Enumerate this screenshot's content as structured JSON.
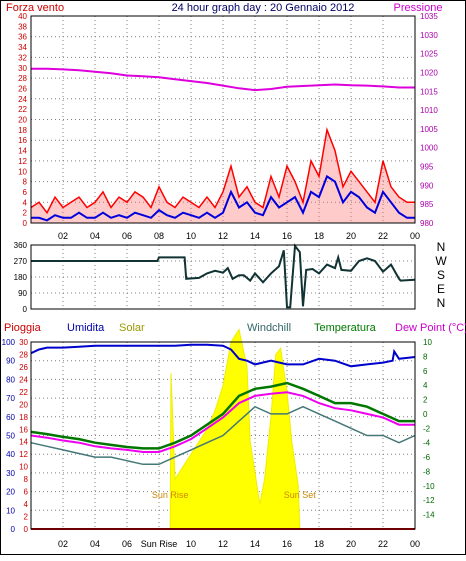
{
  "title": "24 hour graph day : 20 Gennaio 2012",
  "colors": {
    "wind": "#ff0000",
    "wind_avg": "#0000dd",
    "pressure": "#dd00dd",
    "direction": "#113333",
    "rain": "#dd0000",
    "humidity": "#0000cc",
    "solar": "#ffff00",
    "windchill": "#447777",
    "temperature": "#007700",
    "dewpoint": "#ee00ee",
    "grid": "#808080",
    "label_red": "#cc0000"
  },
  "x_axis": {
    "ticks": [
      "02",
      "04",
      "06",
      "08",
      "10",
      "12",
      "14",
      "16",
      "18",
      "20",
      "22",
      "00"
    ],
    "tick_hours": [
      2,
      4,
      6,
      8,
      10,
      12,
      14,
      16,
      18,
      20,
      22,
      24
    ],
    "bottom_ticks": [
      "02",
      "04",
      "06",
      "Sun Rise",
      "10",
      "12",
      "14",
      "16",
      "18",
      "20",
      "22",
      "00"
    ]
  },
  "chart_data": [
    {
      "type": "line",
      "name": "wind-pressure",
      "series": [
        {
          "name": "Forza vento",
          "axis": "left",
          "x": [
            0,
            0.5,
            1,
            1.5,
            2,
            2.5,
            3,
            3.5,
            4,
            4.5,
            5,
            5.5,
            6,
            6.5,
            7,
            7.5,
            8,
            8.5,
            9,
            9.5,
            10,
            10.5,
            11,
            11.5,
            12,
            12.5,
            13,
            13.5,
            14,
            14.5,
            15,
            15.5,
            16,
            16.5,
            17,
            17.5,
            18,
            18.5,
            19,
            19.5,
            20,
            20.5,
            21,
            21.5,
            22,
            22.5,
            23,
            23.5,
            24
          ],
          "values": [
            3,
            4,
            2,
            5,
            3,
            4,
            5,
            3,
            4,
            6,
            3,
            5,
            4,
            6,
            5,
            3,
            7,
            4,
            3,
            5,
            4,
            3,
            5,
            3,
            6,
            11,
            5,
            7,
            4,
            3,
            9,
            5,
            11,
            8,
            4,
            12,
            9,
            18,
            14,
            7,
            10,
            8,
            6,
            4,
            12,
            7,
            5,
            4,
            4
          ]
        },
        {
          "name": "Vento medio",
          "axis": "left",
          "x": [
            0,
            0.5,
            1,
            1.5,
            2,
            2.5,
            3,
            3.5,
            4,
            4.5,
            5,
            5.5,
            6,
            6.5,
            7,
            7.5,
            8,
            8.5,
            9,
            9.5,
            10,
            10.5,
            11,
            11.5,
            12,
            12.5,
            13,
            13.5,
            14,
            14.5,
            15,
            15.5,
            16,
            16.5,
            17,
            17.5,
            18,
            18.5,
            19,
            19.5,
            20,
            20.5,
            21,
            21.5,
            22,
            22.5,
            23,
            23.5,
            24
          ],
          "values": [
            1,
            1,
            0.5,
            1.5,
            1,
            1,
            2,
            1,
            1,
            2,
            1,
            1.5,
            1,
            2,
            1.5,
            1,
            2.5,
            1.5,
            1,
            2,
            1.5,
            1,
            2,
            1,
            2,
            6,
            3,
            4,
            2,
            1.5,
            5,
            3,
            4,
            5,
            2,
            6,
            5,
            9,
            8,
            4,
            6,
            5,
            3,
            2,
            6,
            4,
            2,
            1,
            1
          ]
        },
        {
          "name": "Pressione",
          "axis": "right",
          "x": [
            0,
            1,
            2,
            3,
            4,
            5,
            6,
            7,
            8,
            9,
            10,
            11,
            12,
            13,
            14,
            15,
            16,
            17,
            18,
            19,
            20,
            21,
            22,
            23,
            24
          ],
          "values": [
            1021,
            1021,
            1020.8,
            1020.6,
            1020.2,
            1019.8,
            1019.2,
            1019,
            1018.7,
            1018.2,
            1017.7,
            1017.2,
            1016.5,
            1015.8,
            1015.3,
            1015.6,
            1016.2,
            1016.4,
            1016.6,
            1016.8,
            1016.6,
            1016.5,
            1016.3,
            1016,
            1016
          ]
        }
      ],
      "ylim_left": [
        0,
        40
      ],
      "ylim_right": [
        980,
        1035
      ],
      "yticks_left": [
        0,
        2,
        4,
        6,
        8,
        10,
        12,
        14,
        16,
        18,
        20,
        22,
        24,
        26,
        28,
        30,
        32,
        34,
        36,
        38,
        40
      ],
      "yticks_right": [
        980,
        985,
        990,
        995,
        1000,
        1005,
        1010,
        1015,
        1020,
        1025,
        1030,
        1035
      ],
      "labels": {
        "left": "Forza vento",
        "right": "Pressione"
      }
    },
    {
      "type": "line",
      "name": "wind-direction",
      "series": [
        {
          "name": "Direzione vento",
          "x": [
            0,
            7.9,
            8,
            9.6,
            9.7,
            10.5,
            11,
            11.5,
            12,
            12.3,
            12.6,
            13,
            13.3,
            13.7,
            14,
            14.5,
            15,
            15.5,
            15.8,
            16,
            16.2,
            16.5,
            16.8,
            17,
            17.2,
            17.6,
            18,
            18.5,
            19,
            19.2,
            19.4,
            20,
            20.5,
            21,
            21.5,
            22,
            22.5,
            23,
            23.1,
            24
          ],
          "values": [
            270,
            270,
            290,
            290,
            170,
            175,
            200,
            215,
            205,
            230,
            170,
            190,
            190,
            160,
            200,
            150,
            200,
            240,
            330,
            10,
            10,
            355,
            320,
            15,
            220,
            225,
            200,
            250,
            230,
            290,
            220,
            215,
            270,
            285,
            270,
            210,
            250,
            170,
            160,
            165
          ]
        }
      ],
      "ylim": [
        0,
        360
      ],
      "yticks": [
        0,
        45,
        90,
        135,
        180,
        225,
        270,
        315,
        360
      ],
      "ytick_labels": [
        "0",
        "",
        "90",
        "",
        "180",
        "",
        "270",
        "",
        "360"
      ],
      "compass_labels": [
        "N",
        "W",
        "S",
        "E",
        "N"
      ]
    },
    {
      "type": "line",
      "name": "temperature-humidity",
      "series": [
        {
          "name": "Pioggia",
          "axis": "rain",
          "x": [
            0,
            24
          ],
          "values": [
            0,
            0
          ]
        },
        {
          "name": "Umidita",
          "axis": "left",
          "x": [
            0,
            0.5,
            1,
            2,
            3,
            4,
            5,
            6,
            7,
            8,
            9,
            10,
            11,
            12,
            12.5,
            13,
            13.5,
            14,
            15,
            16,
            17,
            18,
            19,
            20,
            21,
            22,
            22.6,
            22.7,
            23,
            24
          ],
          "values": [
            94,
            96,
            97,
            97,
            97.5,
            98,
            98,
            98,
            98,
            98,
            98,
            98.5,
            98.5,
            98,
            96,
            91,
            90,
            88,
            90,
            88,
            88,
            91,
            90,
            87,
            88,
            89,
            90,
            95,
            91,
            92
          ]
        },
        {
          "name": "Solar",
          "axis": "solar",
          "x": [
            0,
            8.7,
            8.75,
            9,
            10,
            10.5,
            11,
            11.5,
            12,
            12.5,
            13,
            13.5,
            13.7,
            14,
            14.3,
            14.6,
            15,
            15.3,
            15.6,
            16,
            16.3,
            16.7,
            16.8,
            24
          ],
          "values": [
            0,
            0,
            25,
            8,
            12,
            14,
            16,
            19,
            23,
            30,
            32,
            26,
            14,
            9,
            4,
            8,
            18,
            28,
            29,
            22,
            14,
            7,
            0,
            0
          ]
        },
        {
          "name": "Windchill",
          "axis": "temp",
          "x": [
            0,
            1,
            2,
            3,
            4,
            5,
            6,
            7,
            8,
            9,
            10,
            11,
            12,
            13,
            14,
            15,
            16,
            17,
            18,
            19,
            20,
            21,
            22,
            23,
            24
          ],
          "values": [
            -4,
            -4.5,
            -5,
            -5.5,
            -6,
            -6,
            -6.5,
            -7,
            -7,
            -6,
            -5,
            -4,
            -3,
            -1,
            1,
            0,
            0,
            1,
            0,
            -1,
            -2,
            -3,
            -3,
            -4,
            -3
          ]
        },
        {
          "name": "Temperatura",
          "axis": "temp",
          "x": [
            0,
            1,
            2,
            3,
            4,
            5,
            6,
            7,
            8,
            9,
            10,
            11,
            12,
            13,
            14,
            15,
            16,
            17,
            18,
            19,
            20,
            21,
            22,
            23,
            24
          ],
          "values": [
            -2.5,
            -2.8,
            -3.2,
            -3.5,
            -4,
            -4.3,
            -4.6,
            -4.8,
            -4.8,
            -4,
            -3,
            -1.5,
            0,
            2.5,
            3.5,
            3.8,
            4.3,
            3.5,
            2.5,
            1.5,
            1.5,
            1,
            0,
            -1,
            -1
          ]
        },
        {
          "name": "Dew Point",
          "axis": "temp",
          "x": [
            0,
            1,
            2,
            3,
            4,
            5,
            6,
            7,
            8,
            9,
            10,
            11,
            12,
            13,
            14,
            15,
            16,
            17,
            18,
            19,
            20,
            21,
            22,
            23,
            24
          ],
          "values": [
            -3,
            -3.3,
            -3.7,
            -4,
            -4.5,
            -4.8,
            -5,
            -5.3,
            -5.3,
            -4.5,
            -3.5,
            -2,
            -0.5,
            1.5,
            2.5,
            2.8,
            3,
            2.5,
            1.5,
            0.8,
            0.5,
            0,
            -0.5,
            -1.5,
            -1.5
          ]
        }
      ],
      "ylim_left": [
        0,
        100
      ],
      "ylim_solar": [
        0,
        30
      ],
      "ylim_temp": [
        -16,
        10
      ],
      "yticks_left": [
        0,
        10,
        20,
        30,
        40,
        50,
        60,
        70,
        80,
        90,
        100
      ],
      "yticks_solar": [
        0,
        2,
        4,
        6,
        8,
        10,
        12,
        14,
        16,
        18,
        20,
        22,
        24,
        26,
        28,
        30
      ],
      "yticks_temp": [
        -14,
        -12,
        -10,
        -8,
        -6,
        -4,
        -2,
        0,
        2,
        4,
        6,
        8,
        10
      ],
      "legend": [
        "Pioggia",
        "Umidita",
        "Solar",
        "Windchill",
        "Temperatura",
        "Dew Point (°C)"
      ],
      "annotations": [
        {
          "text": "Sun Rise",
          "x": 8.7
        },
        {
          "text": "Sun Set",
          "x": 16.8
        }
      ]
    }
  ]
}
